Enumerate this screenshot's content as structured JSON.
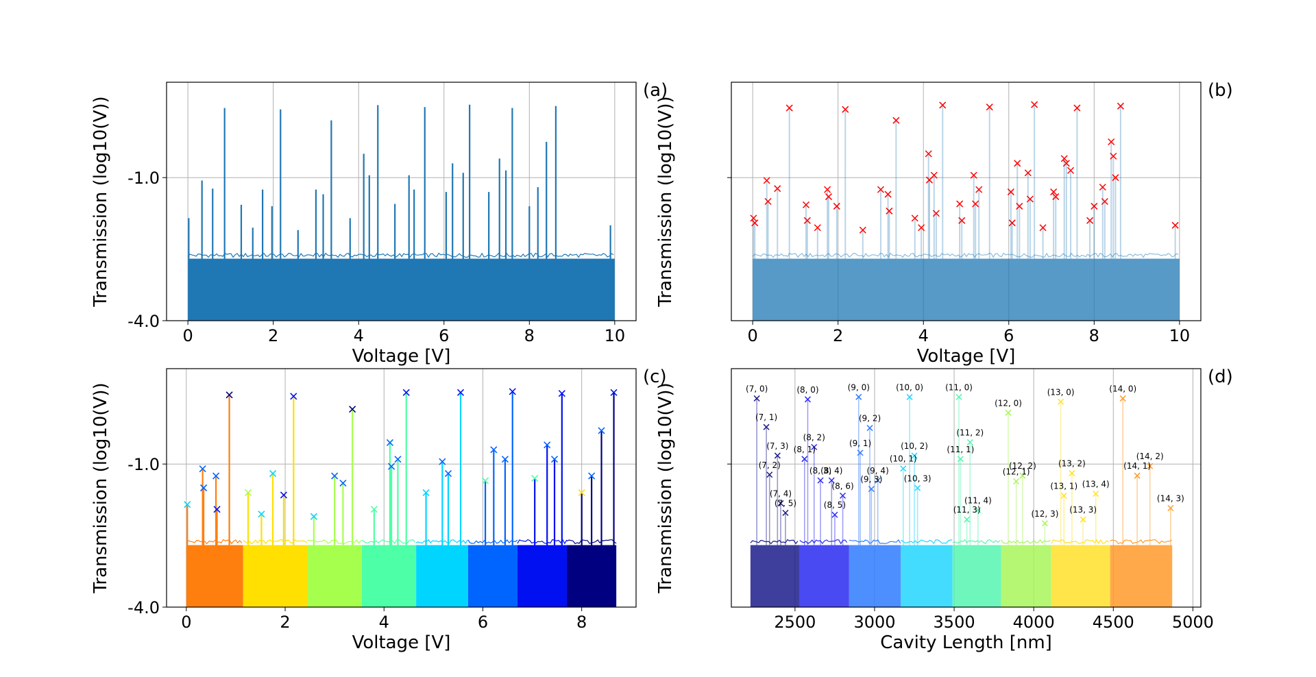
{
  "figure": {
    "colors": {
      "trace": "#1f77b4",
      "marker_b": "#ff0000",
      "grid": "#b0b0b0",
      "segment_palette": [
        "#ff7f0e",
        "#ffe000",
        "#a6ff4d",
        "#4dffa6",
        "#00d5ff",
        "#0064ff",
        "#0010f0",
        "#000080"
      ]
    }
  },
  "chart_data": [
    {
      "id": "a",
      "type": "line",
      "panel_label": "(a)",
      "xlabel": "Voltage [V]",
      "ylabel": "Transmission (log10(V))",
      "xlim": [
        -0.5,
        10.5
      ],
      "ylim": [
        -4.0,
        1.0
      ],
      "xticks": [
        0,
        2,
        4,
        6,
        8,
        10
      ],
      "xtick_labels": [
        "0",
        "2",
        "4",
        "6",
        "8",
        "10"
      ],
      "yticks": [
        -1.0,
        -4.0
      ],
      "ytick_labels": [
        "-1.0",
        "-4.0"
      ],
      "grid": true,
      "baseline_band": [
        -4.0,
        -2.7
      ],
      "peaks": [
        {
          "x": 0.02,
          "y": -1.85
        },
        {
          "x": 0.33,
          "y": -1.06
        },
        {
          "x": 0.58,
          "y": -1.23
        },
        {
          "x": 0.86,
          "y": 0.46
        },
        {
          "x": 1.25,
          "y": -1.57
        },
        {
          "x": 1.52,
          "y": -2.05
        },
        {
          "x": 1.75,
          "y": -1.25
        },
        {
          "x": 1.97,
          "y": -1.6
        },
        {
          "x": 2.17,
          "y": 0.43
        },
        {
          "x": 2.58,
          "y": -2.1
        },
        {
          "x": 3.0,
          "y": -1.25
        },
        {
          "x": 3.17,
          "y": -1.35
        },
        {
          "x": 3.36,
          "y": 0.2
        },
        {
          "x": 3.8,
          "y": -1.85
        },
        {
          "x": 4.12,
          "y": -0.5
        },
        {
          "x": 4.25,
          "y": -0.95
        },
        {
          "x": 4.45,
          "y": 0.52
        },
        {
          "x": 4.85,
          "y": -1.55
        },
        {
          "x": 5.18,
          "y": -0.95
        },
        {
          "x": 5.3,
          "y": -1.25
        },
        {
          "x": 5.55,
          "y": 0.48
        },
        {
          "x": 6.05,
          "y": -1.3
        },
        {
          "x": 6.2,
          "y": -0.7
        },
        {
          "x": 6.45,
          "y": -0.9
        },
        {
          "x": 6.6,
          "y": 0.53
        },
        {
          "x": 7.05,
          "y": -1.3
        },
        {
          "x": 7.3,
          "y": -0.6
        },
        {
          "x": 7.45,
          "y": -0.85
        },
        {
          "x": 7.6,
          "y": 0.46
        },
        {
          "x": 8.0,
          "y": -1.6
        },
        {
          "x": 8.2,
          "y": -1.2
        },
        {
          "x": 8.4,
          "y": -0.25
        },
        {
          "x": 8.62,
          "y": 0.5
        },
        {
          "x": 9.9,
          "y": -2.0
        }
      ]
    },
    {
      "id": "b",
      "type": "line",
      "panel_label": "(b)",
      "xlabel": "Voltage [V]",
      "ylabel": "Transmission (log10(V))",
      "xlim": [
        -0.5,
        10.5
      ],
      "ylim": [
        -4.0,
        1.0
      ],
      "xticks": [
        0,
        2,
        4,
        6,
        8,
        10
      ],
      "xtick_labels": [
        "0",
        "2",
        "4",
        "6",
        "8",
        "10"
      ],
      "yticks": [
        -1.0
      ],
      "ytick_labels": [
        ""
      ],
      "grid": true,
      "baseline_band": [
        -4.0,
        -2.7
      ],
      "peak_markers": [
        {
          "x": 0.02,
          "y": -1.85
        },
        {
          "x": 0.05,
          "y": -1.95
        },
        {
          "x": 0.33,
          "y": -1.06
        },
        {
          "x": 0.36,
          "y": -1.5
        },
        {
          "x": 0.58,
          "y": -1.23
        },
        {
          "x": 0.86,
          "y": 0.46
        },
        {
          "x": 1.25,
          "y": -1.57
        },
        {
          "x": 1.28,
          "y": -1.9
        },
        {
          "x": 1.52,
          "y": -2.05
        },
        {
          "x": 1.75,
          "y": -1.25
        },
        {
          "x": 1.78,
          "y": -1.4
        },
        {
          "x": 1.97,
          "y": -1.6
        },
        {
          "x": 2.17,
          "y": 0.43
        },
        {
          "x": 2.58,
          "y": -2.1
        },
        {
          "x": 3.0,
          "y": -1.25
        },
        {
          "x": 3.17,
          "y": -1.35
        },
        {
          "x": 3.2,
          "y": -1.7
        },
        {
          "x": 3.36,
          "y": 0.2
        },
        {
          "x": 3.8,
          "y": -1.85
        },
        {
          "x": 3.95,
          "y": -2.05
        },
        {
          "x": 4.12,
          "y": -0.5
        },
        {
          "x": 4.14,
          "y": -1.05
        },
        {
          "x": 4.25,
          "y": -0.95
        },
        {
          "x": 4.3,
          "y": -1.75
        },
        {
          "x": 4.45,
          "y": 0.52
        },
        {
          "x": 4.85,
          "y": -1.55
        },
        {
          "x": 4.9,
          "y": -1.9
        },
        {
          "x": 5.18,
          "y": -0.95
        },
        {
          "x": 5.22,
          "y": -1.55
        },
        {
          "x": 5.3,
          "y": -1.25
        },
        {
          "x": 5.55,
          "y": 0.48
        },
        {
          "x": 6.05,
          "y": -1.3
        },
        {
          "x": 6.08,
          "y": -1.95
        },
        {
          "x": 6.2,
          "y": -0.7
        },
        {
          "x": 6.25,
          "y": -1.6
        },
        {
          "x": 6.45,
          "y": -0.9
        },
        {
          "x": 6.5,
          "y": -1.45
        },
        {
          "x": 6.6,
          "y": 0.53
        },
        {
          "x": 6.8,
          "y": -2.05
        },
        {
          "x": 7.05,
          "y": -1.3
        },
        {
          "x": 7.1,
          "y": -1.4
        },
        {
          "x": 7.3,
          "y": -0.6
        },
        {
          "x": 7.35,
          "y": -0.7
        },
        {
          "x": 7.45,
          "y": -0.85
        },
        {
          "x": 7.6,
          "y": 0.46
        },
        {
          "x": 7.9,
          "y": -1.9
        },
        {
          "x": 8.0,
          "y": -1.6
        },
        {
          "x": 8.2,
          "y": -1.2
        },
        {
          "x": 8.25,
          "y": -1.5
        },
        {
          "x": 8.4,
          "y": -0.25
        },
        {
          "x": 8.45,
          "y": -0.55
        },
        {
          "x": 8.5,
          "y": -1.0
        },
        {
          "x": 8.62,
          "y": 0.5
        },
        {
          "x": 9.9,
          "y": -2.0
        }
      ]
    },
    {
      "id": "c",
      "type": "line",
      "panel_label": "(c)",
      "xlabel": "Voltage [V]",
      "ylabel": "Transmission (log10(V))",
      "xlim": [
        -0.4,
        9.1
      ],
      "ylim": [
        -4.0,
        1.0
      ],
      "xticks": [
        0,
        2,
        4,
        6,
        8
      ],
      "xtick_labels": [
        "0",
        "2",
        "4",
        "6",
        "8"
      ],
      "yticks": [
        -1.0,
        -4.0
      ],
      "ytick_labels": [
        "-1.0",
        "-4.0"
      ],
      "grid": true,
      "baseline_band": [
        -4.0,
        -2.7
      ],
      "segments": [
        {
          "x0": 0.0,
          "x1": 1.15,
          "color": "#ff7f0e"
        },
        {
          "x0": 1.15,
          "x1": 2.45,
          "color": "#ffe000"
        },
        {
          "x0": 2.45,
          "x1": 3.55,
          "color": "#a6ff4d"
        },
        {
          "x0": 3.55,
          "x1": 4.65,
          "color": "#4dffa6"
        },
        {
          "x0": 4.65,
          "x1": 5.7,
          "color": "#00d5ff"
        },
        {
          "x0": 5.7,
          "x1": 6.7,
          "color": "#0064ff"
        },
        {
          "x0": 6.7,
          "x1": 7.7,
          "color": "#0010f0"
        },
        {
          "x0": 7.7,
          "x1": 8.7,
          "color": "#000080"
        }
      ],
      "peaks": [
        {
          "x": 0.02,
          "y": -1.85,
          "color": "#00d5ff"
        },
        {
          "x": 0.33,
          "y": -1.1,
          "color": "#0064ff"
        },
        {
          "x": 0.35,
          "y": -1.5,
          "color": "#0064ff"
        },
        {
          "x": 0.6,
          "y": -1.25,
          "color": "#0064ff"
        },
        {
          "x": 0.62,
          "y": -1.95,
          "color": "#0010f0"
        },
        {
          "x": 0.87,
          "y": 0.45,
          "color": "#000080"
        },
        {
          "x": 1.25,
          "y": -1.6,
          "color": "#a6ff4d"
        },
        {
          "x": 1.52,
          "y": -2.05,
          "color": "#00d5ff"
        },
        {
          "x": 1.75,
          "y": -1.2,
          "color": "#00d5ff"
        },
        {
          "x": 1.97,
          "y": -1.65,
          "color": "#0010f0"
        },
        {
          "x": 2.17,
          "y": 0.42,
          "color": "#0010f0"
        },
        {
          "x": 2.58,
          "y": -2.1,
          "color": "#00d5ff"
        },
        {
          "x": 3.0,
          "y": -1.25,
          "color": "#0064ff"
        },
        {
          "x": 3.17,
          "y": -1.4,
          "color": "#0064ff"
        },
        {
          "x": 3.36,
          "y": 0.15,
          "color": "#000080"
        },
        {
          "x": 3.8,
          "y": -1.95,
          "color": "#4dffa6"
        },
        {
          "x": 4.12,
          "y": -0.55,
          "color": "#0064ff"
        },
        {
          "x": 4.15,
          "y": -1.05,
          "color": "#0064ff"
        },
        {
          "x": 4.28,
          "y": -0.9,
          "color": "#0064ff"
        },
        {
          "x": 4.45,
          "y": 0.5,
          "color": "#0010f0"
        },
        {
          "x": 4.85,
          "y": -1.6,
          "color": "#00d5ff"
        },
        {
          "x": 5.18,
          "y": -0.95,
          "color": "#0064ff"
        },
        {
          "x": 5.3,
          "y": -1.2,
          "color": "#0064ff"
        },
        {
          "x": 5.55,
          "y": 0.5,
          "color": "#0010f0"
        },
        {
          "x": 6.05,
          "y": -1.35,
          "color": "#4dffa6"
        },
        {
          "x": 6.22,
          "y": -0.7,
          "color": "#0064ff"
        },
        {
          "x": 6.45,
          "y": -0.9,
          "color": "#0064ff"
        },
        {
          "x": 6.6,
          "y": 0.52,
          "color": "#0010f0"
        },
        {
          "x": 7.05,
          "y": -1.3,
          "color": "#4dffa6"
        },
        {
          "x": 7.3,
          "y": -0.6,
          "color": "#0064ff"
        },
        {
          "x": 7.45,
          "y": -0.9,
          "color": "#0064ff"
        },
        {
          "x": 7.6,
          "y": 0.48,
          "color": "#0010f0"
        },
        {
          "x": 8.0,
          "y": -1.6,
          "color": "#ffe000"
        },
        {
          "x": 8.2,
          "y": -1.25,
          "color": "#0064ff"
        },
        {
          "x": 8.4,
          "y": -0.3,
          "color": "#0064ff"
        },
        {
          "x": 8.65,
          "y": 0.5,
          "color": "#0010f0"
        }
      ]
    },
    {
      "id": "d",
      "type": "line",
      "panel_label": "(d)",
      "xlabel": "Cavity Length [nm]",
      "ylabel": "Transmission (log10(V))",
      "xlim": [
        2100,
        5050
      ],
      "ylim": [
        -4.0,
        1.0
      ],
      "xticks": [
        2500,
        3000,
        3500,
        4000,
        4500,
        5000
      ],
      "xtick_labels": [
        "2500",
        "3000",
        "3500",
        "4000",
        "4500",
        "5000"
      ],
      "yticks": [
        -1.0
      ],
      "ytick_labels": [
        ""
      ],
      "grid": true,
      "baseline_band": [
        -4.0,
        -2.7
      ],
      "segments": [
        {
          "x0": 2220,
          "x1": 2530,
          "color": "#1c1c8c"
        },
        {
          "x0": 2530,
          "x1": 2840,
          "color": "#2a2af0"
        },
        {
          "x0": 2840,
          "x1": 3165,
          "color": "#2f7bff"
        },
        {
          "x0": 3165,
          "x1": 3490,
          "color": "#22d6ff"
        },
        {
          "x0": 3490,
          "x1": 3795,
          "color": "#55f5b0"
        },
        {
          "x0": 3795,
          "x1": 4110,
          "color": "#a8f55a"
        },
        {
          "x0": 4110,
          "x1": 4480,
          "color": "#ffe12a"
        },
        {
          "x0": 4480,
          "x1": 4870,
          "color": "#ff9a2a"
        }
      ],
      "mode_labels": [
        {
          "text": "(7, 0)",
          "x": 2260,
          "y": 0.52
        },
        {
          "text": "(7, 1)",
          "x": 2320,
          "y": -0.08
        },
        {
          "text": "(7, 3)",
          "x": 2390,
          "y": -0.68
        },
        {
          "text": "(7, 2)",
          "x": 2340,
          "y": -1.08
        },
        {
          "text": "(7, 4)",
          "x": 2410,
          "y": -1.68
        },
        {
          "text": "(7, 5)",
          "x": 2440,
          "y": -1.88
        },
        {
          "text": "(8, 0)",
          "x": 2580,
          "y": 0.5
        },
        {
          "text": "(8, 2)",
          "x": 2620,
          "y": -0.5
        },
        {
          "text": "(8, 1)",
          "x": 2560,
          "y": -0.75
        },
        {
          "text": "(8, 3)",
          "x": 2660,
          "y": -1.2
        },
        {
          "text": "(8, 4)",
          "x": 2730,
          "y": -1.2
        },
        {
          "text": "(8, 6)",
          "x": 2800,
          "y": -1.52
        },
        {
          "text": "(8, 5)",
          "x": 2750,
          "y": -1.92
        },
        {
          "text": "(9, 0)",
          "x": 2900,
          "y": 0.55
        },
        {
          "text": "(9, 2)",
          "x": 2970,
          "y": -0.1
        },
        {
          "text": "(9, 1)",
          "x": 2910,
          "y": -0.62
        },
        {
          "text": "(9, 4)",
          "x": 3020,
          "y": -1.2
        },
        {
          "text": "(9, 3)",
          "x": 2980,
          "y": -1.38
        },
        {
          "text": "(10, 0)",
          "x": 3220,
          "y": 0.55
        },
        {
          "text": "(10, 2)",
          "x": 3250,
          "y": -0.68
        },
        {
          "text": "(10, 1)",
          "x": 3180,
          "y": -0.95
        },
        {
          "text": "(10, 3)",
          "x": 3270,
          "y": -1.36
        },
        {
          "text": "(11, 0)",
          "x": 3530,
          "y": 0.55
        },
        {
          "text": "(11, 2)",
          "x": 3600,
          "y": -0.4
        },
        {
          "text": "(11, 1)",
          "x": 3540,
          "y": -0.75
        },
        {
          "text": "(11, 4)",
          "x": 3650,
          "y": -1.82
        },
        {
          "text": "(11, 3)",
          "x": 3580,
          "y": -2.02
        },
        {
          "text": "(12, 0)",
          "x": 3840,
          "y": 0.22
        },
        {
          "text": "(12, 2)",
          "x": 3930,
          "y": -1.1
        },
        {
          "text": "(12, 1)",
          "x": 3890,
          "y": -1.22
        },
        {
          "text": "(12, 3)",
          "x": 4070,
          "y": -2.1
        },
        {
          "text": "(13, 0)",
          "x": 4170,
          "y": 0.45
        },
        {
          "text": "(13, 2)",
          "x": 4240,
          "y": -1.05
        },
        {
          "text": "(13, 1)",
          "x": 4190,
          "y": -1.52
        },
        {
          "text": "(13, 4)",
          "x": 4390,
          "y": -1.48
        },
        {
          "text": "(13, 3)",
          "x": 4310,
          "y": -2.02
        },
        {
          "text": "(14, 0)",
          "x": 4560,
          "y": 0.52
        },
        {
          "text": "(14, 2)",
          "x": 4730,
          "y": -0.9
        },
        {
          "text": "(14, 1)",
          "x": 4650,
          "y": -1.1
        },
        {
          "text": "(14, 3)",
          "x": 4860,
          "y": -1.78
        }
      ]
    }
  ]
}
